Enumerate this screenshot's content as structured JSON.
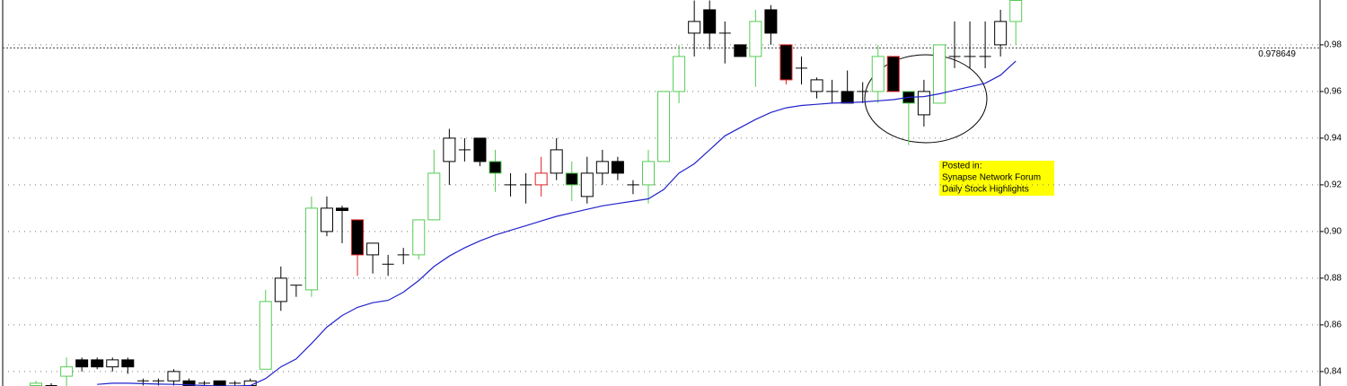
{
  "chart_data": {
    "type": "candlestick",
    "ylim": [
      0.8338,
      0.9992
    ],
    "yticks": [
      0.84,
      0.86,
      0.88,
      {
        "value": 0.9,
        "label": "0.90"
      },
      0.92,
      0.94,
      0.96,
      0.98
    ],
    "grid": true,
    "colors": {
      "green": "#55cc55",
      "black": "#000000",
      "red": "#e02020"
    },
    "series": [
      {
        "name": null,
        "open": [
          0.834,
          0.834,
          0.838,
          0.845,
          0.845,
          0.842,
          0.845,
          0.836,
          0.836,
          0.836,
          0.836,
          0.835,
          0.836,
          0.835,
          0.834,
          0.841,
          0.87,
          0.877,
          0.875,
          0.9,
          0.91,
          0.905,
          0.89,
          0.886,
          0.89,
          0.89,
          0.905,
          0.93,
          0.935,
          0.94,
          0.93,
          0.92,
          0.92,
          0.92,
          0.925,
          0.925,
          0.915,
          0.925,
          0.93,
          0.92,
          0.92,
          0.93,
          0.96,
          0.985,
          0.995,
          0.985,
          0.98,
          0.975,
          0.995,
          0.98,
          0.97,
          0.96,
          0.96,
          0.96,
          0.96,
          0.96,
          0.975,
          0.96,
          0.95,
          0.955,
          0.975,
          0.975,
          0.975,
          0.98,
          0.99
        ],
        "high": [
          0.836,
          0.835,
          0.846,
          0.846,
          0.846,
          0.846,
          0.846,
          0.837,
          0.837,
          0.841,
          0.837,
          0.836,
          0.836,
          0.836,
          0.837,
          0.875,
          0.885,
          0.877,
          0.915,
          0.915,
          0.911,
          0.905,
          0.895,
          0.89,
          0.893,
          0.905,
          0.935,
          0.944,
          0.94,
          0.94,
          0.935,
          0.925,
          0.925,
          0.932,
          0.94,
          0.93,
          0.932,
          0.935,
          0.932,
          0.922,
          0.935,
          0.96,
          0.98,
          0.999,
          0.999,
          0.99,
          0.98,
          0.995,
          0.997,
          0.98,
          0.975,
          0.966,
          0.965,
          0.969,
          0.964,
          0.98,
          0.975,
          0.96,
          0.965,
          0.98,
          0.99,
          0.99,
          0.99,
          0.995,
          0.999
        ],
        "low": [
          0.833,
          0.833,
          0.833,
          0.84,
          0.841,
          0.84,
          0.839,
          0.834,
          0.834,
          0.834,
          0.833,
          0.833,
          0.833,
          0.833,
          0.833,
          0.841,
          0.866,
          0.872,
          0.872,
          0.898,
          0.895,
          0.881,
          0.882,
          0.881,
          0.886,
          0.888,
          0.905,
          0.92,
          0.93,
          0.928,
          0.917,
          0.915,
          0.912,
          0.915,
          0.922,
          0.913,
          0.912,
          0.92,
          0.922,
          0.916,
          0.912,
          0.93,
          0.955,
          0.975,
          0.978,
          0.972,
          0.975,
          0.962,
          0.98,
          0.963,
          0.963,
          0.957,
          0.955,
          0.955,
          0.955,
          0.955,
          0.96,
          0.937,
          0.945,
          0.955,
          0.97,
          0.97,
          0.97,
          0.975,
          0.98
        ],
        "close": [
          0.835,
          0.834,
          0.842,
          0.842,
          0.842,
          0.845,
          0.842,
          0.836,
          0.836,
          0.84,
          0.834,
          0.835,
          0.834,
          0.835,
          0.836,
          0.87,
          0.88,
          0.877,
          0.91,
          0.91,
          0.909,
          0.89,
          0.895,
          0.886,
          0.89,
          0.905,
          0.925,
          0.94,
          0.935,
          0.93,
          0.925,
          0.92,
          0.92,
          0.925,
          0.935,
          0.92,
          0.925,
          0.93,
          0.925,
          0.92,
          0.93,
          0.96,
          0.975,
          0.99,
          0.985,
          0.985,
          0.975,
          0.99,
          0.985,
          0.965,
          0.97,
          0.965,
          0.96,
          0.955,
          0.96,
          0.975,
          0.96,
          0.955,
          0.96,
          0.98,
          0.975,
          0.975,
          0.975,
          0.99,
          0.999
        ],
        "outline": [
          "green",
          "black",
          "green",
          "black",
          "black",
          "black",
          "black",
          "black",
          "black",
          "black",
          "black",
          "black",
          "black",
          "black",
          "black",
          "green",
          "black",
          "black",
          "green",
          "black",
          "black",
          "red",
          "black",
          "black",
          "black",
          "green",
          "green",
          "black",
          "black",
          "black",
          "green",
          "black",
          "black",
          "red",
          "black",
          "green",
          "black",
          "black",
          "black",
          "black",
          "green",
          "green",
          "green",
          "black",
          "black",
          "black",
          "black",
          "green",
          "black",
          "red",
          "black",
          "black",
          "black",
          "black",
          "black",
          "green",
          "red",
          "green",
          "black",
          "green",
          "black",
          "black",
          "black",
          "black",
          "green"
        ]
      }
    ],
    "moving_average": {
      "color": "#2222cc",
      "values": [
        null,
        null,
        null,
        null,
        0.8345,
        0.835,
        0.835,
        0.8348,
        0.8346,
        0.8345,
        0.8343,
        0.834,
        0.8338,
        0.8338,
        0.834,
        0.837,
        0.842,
        0.8454,
        0.852,
        0.859,
        0.864,
        0.8675,
        0.8695,
        0.8705,
        0.874,
        0.879,
        0.885,
        0.8895,
        0.893,
        0.896,
        0.8985,
        0.9005,
        0.9025,
        0.9045,
        0.9065,
        0.908,
        0.9095,
        0.911,
        0.912,
        0.913,
        0.914,
        0.918,
        0.925,
        0.929,
        0.935,
        0.941,
        0.9445,
        0.948,
        0.951,
        0.953,
        0.954,
        0.9545,
        0.955,
        0.9552,
        0.9555,
        0.956,
        0.9565,
        0.9575,
        0.9578,
        0.959,
        0.9605,
        0.962,
        0.9635,
        0.967,
        0.973
      ]
    },
    "reference_line": {
      "value": 0.978649
    },
    "annotation": [
      "Posted in:",
      "Synapse Network Forum",
      "Daily Stock Highlights"
    ]
  }
}
